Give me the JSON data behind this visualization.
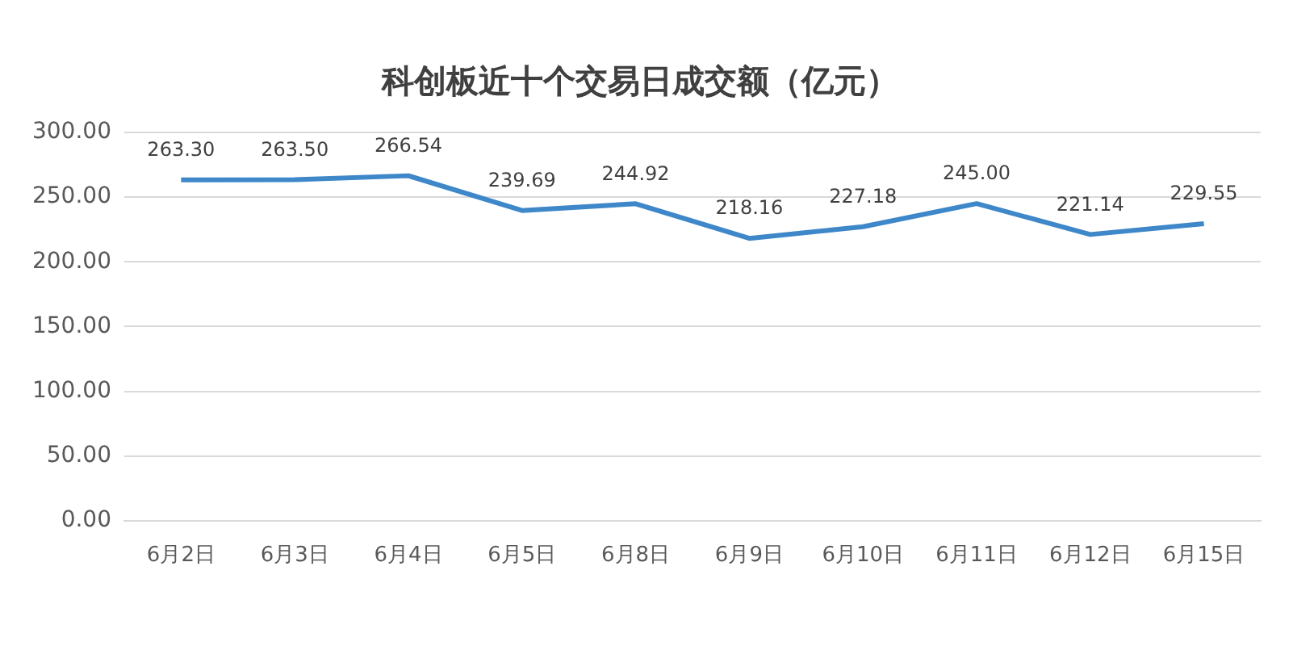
{
  "chart_data": {
    "type": "line",
    "title": "科创板近十个交易日成交额（亿元）",
    "categories": [
      "6月2日",
      "6月3日",
      "6月4日",
      "6月5日",
      "6月8日",
      "6月9日",
      "6月10日",
      "6月11日",
      "6月12日",
      "6月15日"
    ],
    "series": [
      {
        "color": "#3e87c9",
        "values": [
          263.3,
          263.5,
          266.54,
          239.69,
          244.92,
          218.16,
          227.18,
          245,
          221.14,
          229.55
        ],
        "value_labels": [
          "263.30",
          "263.50",
          "266.54",
          "239.69",
          "244.92",
          "218.16",
          "227.18",
          "245.00",
          "221.14",
          "229.55"
        ]
      }
    ],
    "ylim": [
      0,
      300
    ],
    "yticks": [
      {
        "value": 0,
        "label": "0.00"
      },
      {
        "value": 50,
        "label": "50.00"
      },
      {
        "value": 100,
        "label": "100.00"
      },
      {
        "value": 150,
        "label": "150.00"
      },
      {
        "value": 200,
        "label": "200.00"
      },
      {
        "value": 250,
        "label": "250.00"
      },
      {
        "value": 300,
        "label": "300.00"
      }
    ],
    "grid": "y",
    "legend": false,
    "marker": "none",
    "line_style": "solid"
  }
}
